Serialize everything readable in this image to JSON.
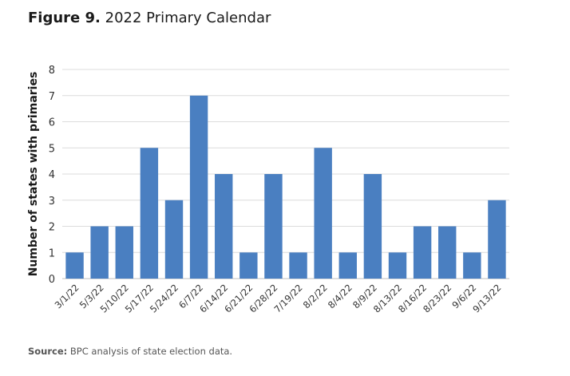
{
  "figure": {
    "label": "Figure 9.",
    "title": "2022 Primary Calendar"
  },
  "source": {
    "label": "Source:",
    "text": "BPC analysis of state election data."
  },
  "chart_data": {
    "type": "bar",
    "title": "2022 Primary Calendar",
    "xlabel": "",
    "ylabel": "Number of states with primaries",
    "ylim": [
      0,
      8
    ],
    "yticks": [
      "0",
      "1",
      "2",
      "3",
      "4",
      "5",
      "6",
      "7",
      "8"
    ],
    "grid": true,
    "bar_color": "#4a7fc1",
    "categories": [
      "3/1/22",
      "5/3/22",
      "5/10/22",
      "5/17/22",
      "5/24/22",
      "6/7/22",
      "6/14/22",
      "6/21/22",
      "6/28/22",
      "7/19/22",
      "8/2/22",
      "8/4/22",
      "8/9/22",
      "8/13/22",
      "8/16/22",
      "8/23/22",
      "9/6/22",
      "9/13/22"
    ],
    "values": [
      1,
      2,
      2,
      5,
      3,
      7,
      4,
      1,
      4,
      1,
      5,
      1,
      4,
      1,
      2,
      2,
      1,
      3
    ]
  }
}
